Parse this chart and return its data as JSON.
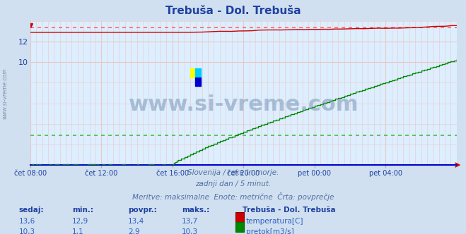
{
  "title": "Trebuša - Dol. Trebuša",
  "bg_color": "#d0e0f0",
  "plot_bg_color": "#ddeeff",
  "grid_color_v": "#e8c8c8",
  "grid_color_h": "#e8c8c8",
  "text_color": "#2040a0",
  "subtitle1": "Slovenija / reke in morje.",
  "subtitle2": "zadnji dan / 5 minut.",
  "subtitle3": "Meritve: maksimalne  Enote: metrične  Črta: povprečje",
  "legend_title": "Trebuša - Dol. Trebuša",
  "legend_temp_label": "temperatura[C]",
  "legend_flow_label": "pretok[m3/s]",
  "temp_color": "#cc0000",
  "flow_color": "#008800",
  "avg_temp_color": "#ff6666",
  "avg_flow_color": "#44bb44",
  "xaxis_labels": [
    "čet 08:00",
    "čet 12:00",
    "čet 16:00",
    "čet 20:00",
    "pet 00:00",
    "pet 04:00"
  ],
  "xaxis_positions": [
    0,
    48,
    96,
    144,
    192,
    240
  ],
  "n_points": 289,
  "ylim": [
    0,
    14
  ],
  "temp_min": 12.9,
  "temp_max": 13.7,
  "temp_avg": 13.4,
  "flow_min": 1.1,
  "flow_max": 10.3,
  "flow_avg": 2.9,
  "table_headers": [
    "sedaj:",
    "min.:",
    "povpr.:",
    "maks.:"
  ],
  "table_row1": [
    "13,6",
    "12,9",
    "13,4",
    "13,7"
  ],
  "table_row2": [
    "10,3",
    "1,1",
    "2,9",
    "10,3"
  ],
  "watermark": "www.si-vreme.com"
}
